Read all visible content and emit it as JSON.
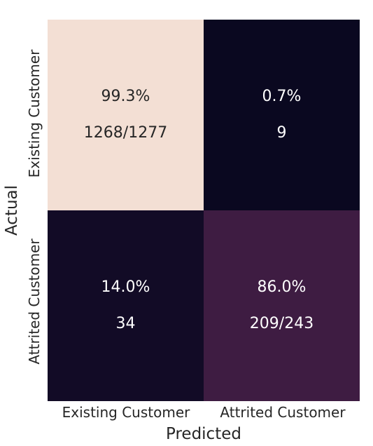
{
  "chart_data": {
    "type": "heatmap",
    "title": "",
    "xlabel": "Predicted",
    "ylabel": "Actual",
    "x_categories": [
      "Existing Customer",
      "Attrited Customer"
    ],
    "y_categories": [
      "Existing Customer",
      "Attrited Customer"
    ],
    "cells": [
      [
        {
          "percent": "99.3%",
          "count": "1268/1277",
          "value": 0.993
        },
        {
          "percent": "0.7%",
          "count": "9",
          "value": 0.007
        }
      ],
      [
        {
          "percent": "14.0%",
          "count": "34",
          "value": 0.14
        },
        {
          "percent": "86.0%",
          "count": "209/243",
          "value": 0.86
        }
      ]
    ],
    "colorbar": false,
    "colors": {
      "high": "#fce9dc",
      "low": "#0a0820",
      "mid_high": "#3e1c42",
      "text_on_light": "#262626",
      "text_on_dark": "#ffffff"
    }
  }
}
